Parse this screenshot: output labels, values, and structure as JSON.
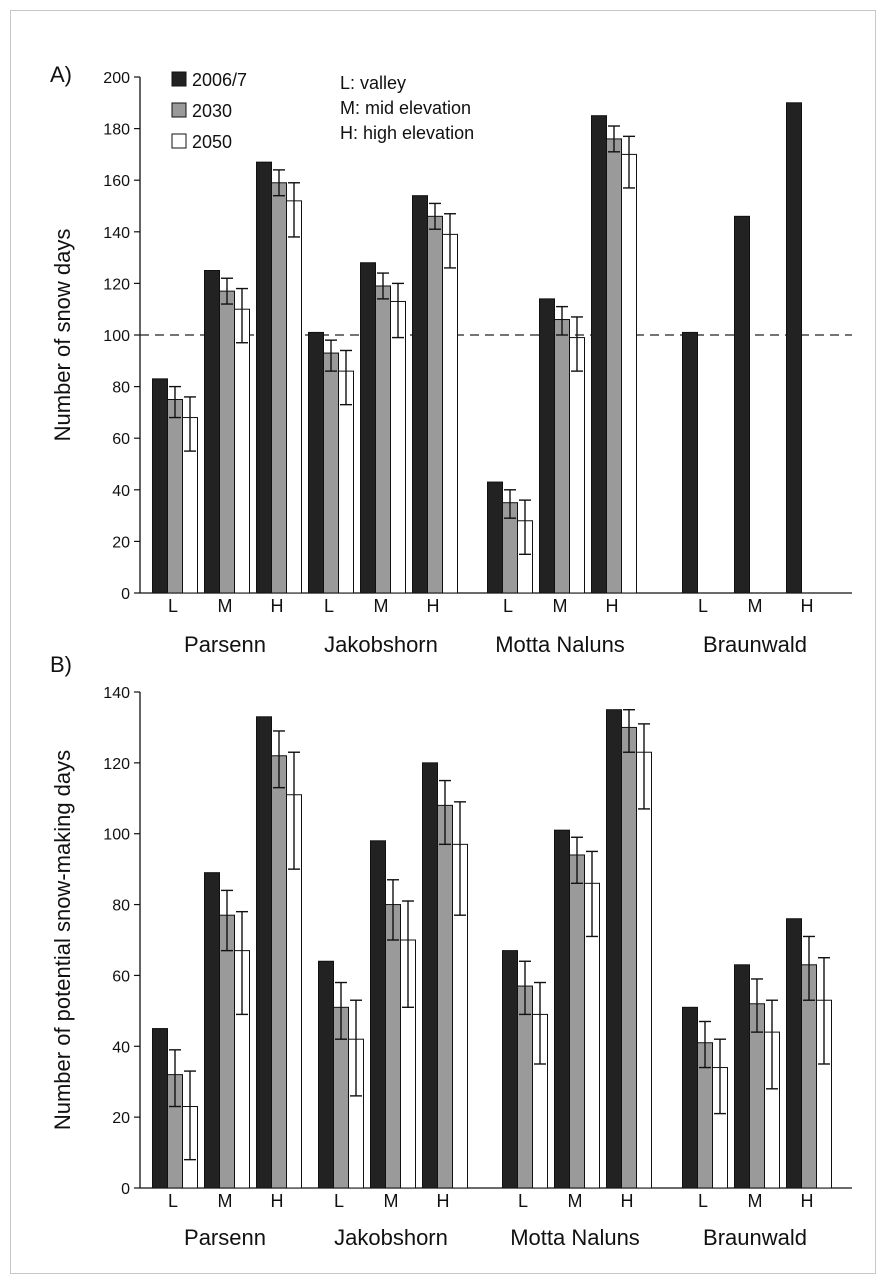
{
  "chart_data": [
    {
      "type": "bar",
      "panel_label": "A)",
      "ylabel": "Number of snow days",
      "ylim": [
        0,
        200
      ],
      "yticks": [
        0,
        20,
        40,
        60,
        80,
        100,
        120,
        140,
        160,
        180,
        200
      ],
      "reference_line": 100,
      "legend": {
        "placement": "top-left",
        "entries": [
          "2006/7",
          "2030",
          "2050"
        ]
      },
      "annotation": [
        "L: valley",
        "M: mid elevation",
        "H: high elevation"
      ],
      "groups": [
        {
          "name": "Parsenn",
          "categories": [
            "L",
            "M",
            "H"
          ],
          "series": [
            {
              "name": "2006/7",
              "values": [
                83,
                125,
                167
              ],
              "errors": [
                null,
                null,
                null
              ]
            },
            {
              "name": "2030",
              "values": [
                75,
                117,
                159
              ],
              "errors": [
                [
                  68,
                  80
                ],
                [
                  112,
                  122
                ],
                [
                  154,
                  164
                ]
              ]
            },
            {
              "name": "2050",
              "values": [
                68,
                110,
                152
              ],
              "errors": [
                [
                  55,
                  76
                ],
                [
                  97,
                  118
                ],
                [
                  138,
                  159
                ]
              ]
            }
          ]
        },
        {
          "name": "Jakobshorn",
          "categories": [
            "L",
            "M",
            "H"
          ],
          "series": [
            {
              "name": "2006/7",
              "values": [
                101,
                128,
                154
              ],
              "errors": [
                null,
                null,
                null
              ]
            },
            {
              "name": "2030",
              "values": [
                93,
                119,
                146
              ],
              "errors": [
                [
                  86,
                  98
                ],
                [
                  114,
                  124
                ],
                [
                  141,
                  151
                ]
              ]
            },
            {
              "name": "2050",
              "values": [
                86,
                113,
                139
              ],
              "errors": [
                [
                  73,
                  94
                ],
                [
                  99,
                  120
                ],
                [
                  126,
                  147
                ]
              ]
            }
          ]
        },
        {
          "name": "Motta Naluns",
          "categories": [
            "L",
            "M",
            "H"
          ],
          "series": [
            {
              "name": "2006/7",
              "values": [
                43,
                114,
                185
              ],
              "errors": [
                null,
                null,
                null
              ]
            },
            {
              "name": "2030",
              "values": [
                35,
                106,
                176
              ],
              "errors": [
                [
                  29,
                  40
                ],
                [
                  100,
                  111
                ],
                [
                  171,
                  181
                ]
              ]
            },
            {
              "name": "2050",
              "values": [
                28,
                99,
                170
              ],
              "errors": [
                [
                  15,
                  36
                ],
                [
                  86,
                  107
                ],
                [
                  157,
                  177
                ]
              ]
            }
          ]
        },
        {
          "name": "Braunwald",
          "categories": [
            "L",
            "M",
            "H"
          ],
          "series": [
            {
              "name": "2006/7",
              "values": [
                101,
                146,
                190
              ],
              "errors": [
                null,
                null,
                null
              ]
            }
          ]
        }
      ]
    },
    {
      "type": "bar",
      "panel_label": "B)",
      "ylabel": "Number of potential snow-making days",
      "ylim": [
        0,
        140
      ],
      "yticks": [
        0,
        20,
        40,
        60,
        80,
        100,
        120,
        140
      ],
      "groups": [
        {
          "name": "Parsenn",
          "categories": [
            "L",
            "M",
            "H"
          ],
          "series": [
            {
              "name": "2006/7",
              "values": [
                45,
                89,
                133
              ],
              "errors": [
                null,
                null,
                null
              ]
            },
            {
              "name": "2030",
              "values": [
                32,
                77,
                122
              ],
              "errors": [
                [
                  23,
                  39
                ],
                [
                  67,
                  84
                ],
                [
                  113,
                  129
                ]
              ]
            },
            {
              "name": "2050",
              "values": [
                23,
                67,
                111
              ],
              "errors": [
                [
                  8,
                  33
                ],
                [
                  49,
                  78
                ],
                [
                  90,
                  123
                ]
              ]
            }
          ]
        },
        {
          "name": "Jakobshorn",
          "categories": [
            "L",
            "M",
            "H"
          ],
          "series": [
            {
              "name": "2006/7",
              "values": [
                64,
                98,
                120
              ],
              "errors": [
                null,
                null,
                null
              ]
            },
            {
              "name": "2030",
              "values": [
                51,
                80,
                108
              ],
              "errors": [
                [
                  42,
                  58
                ],
                [
                  70,
                  87
                ],
                [
                  97,
                  115
                ]
              ]
            },
            {
              "name": "2050",
              "values": [
                42,
                70,
                97
              ],
              "errors": [
                [
                  26,
                  53
                ],
                [
                  51,
                  81
                ],
                [
                  77,
                  109
                ]
              ]
            }
          ]
        },
        {
          "name": "Motta Naluns",
          "categories": [
            "L",
            "M",
            "H"
          ],
          "series": [
            {
              "name": "2006/7",
              "values": [
                67,
                101,
                135
              ],
              "errors": [
                null,
                null,
                null
              ]
            },
            {
              "name": "2030",
              "values": [
                57,
                94,
                130
              ],
              "errors": [
                [
                  49,
                  64
                ],
                [
                  86,
                  99
                ],
                [
                  123,
                  135
                ]
              ]
            },
            {
              "name": "2050",
              "values": [
                49,
                86,
                123
              ],
              "errors": [
                [
                  35,
                  58
                ],
                [
                  71,
                  95
                ],
                [
                  107,
                  131
                ]
              ]
            }
          ]
        },
        {
          "name": "Braunwald",
          "categories": [
            "L",
            "M",
            "H"
          ],
          "series": [
            {
              "name": "2006/7",
              "values": [
                51,
                63,
                76
              ],
              "errors": [
                null,
                null,
                null
              ]
            },
            {
              "name": "2030",
              "values": [
                41,
                52,
                63
              ],
              "errors": [
                [
                  34,
                  47
                ],
                [
                  44,
                  59
                ],
                [
                  53,
                  71
                ]
              ]
            },
            {
              "name": "2050",
              "values": [
                34,
                44,
                53
              ],
              "errors": [
                [
                  21,
                  42
                ],
                [
                  28,
                  53
                ],
                [
                  35,
                  65
                ]
              ]
            }
          ]
        }
      ]
    }
  ],
  "colors": {
    "2006/7": "#222222",
    "2030": "#9a9a9a",
    "2050": "#ffffff",
    "axis": "#111111"
  }
}
